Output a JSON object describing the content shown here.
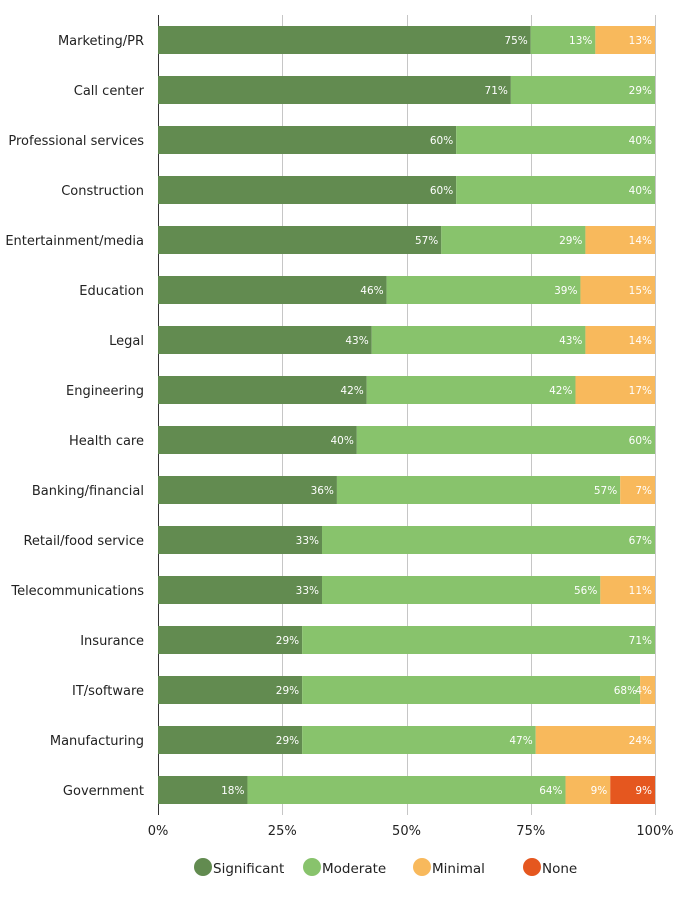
{
  "chart_data": {
    "type": "bar",
    "orientation": "horizontal",
    "stacked": true,
    "title": "",
    "xlabel": "",
    "ylabel": "",
    "xlim": [
      0,
      100
    ],
    "x_ticks": [
      "0%",
      "25%",
      "50%",
      "75%",
      "100%"
    ],
    "grid": true,
    "legend_position": "bottom",
    "categories": [
      "Marketing/PR",
      "Call center",
      "Professional services",
      "Construction",
      "Entertainment/media",
      "Education",
      "Legal",
      "Engineering",
      "Health care",
      "Banking/financial",
      "Retail/food service",
      "Telecommunications",
      "Insurance",
      "IT/software",
      "Manufacturing",
      "Government"
    ],
    "series": [
      {
        "name": "Significant",
        "color": "#628b50",
        "values": [
          75,
          71,
          60,
          60,
          57,
          46,
          43,
          42,
          40,
          36,
          33,
          33,
          29,
          29,
          29,
          18
        ]
      },
      {
        "name": "Moderate",
        "color": "#88c36c",
        "values": [
          13,
          29,
          40,
          40,
          29,
          39,
          43,
          42,
          60,
          57,
          67,
          56,
          71,
          68,
          47,
          64
        ]
      },
      {
        "name": "Minimal",
        "color": "#f8b95c",
        "values": [
          13,
          0,
          0,
          0,
          14,
          15,
          14,
          17,
          0,
          7,
          0,
          11,
          0,
          4,
          24,
          9
        ]
      },
      {
        "name": "None",
        "color": "#e5571f",
        "values": [
          0,
          0,
          0,
          0,
          0,
          0,
          0,
          0,
          0,
          0,
          0,
          0,
          0,
          0,
          0,
          9
        ]
      }
    ],
    "value_suffix": "%"
  }
}
